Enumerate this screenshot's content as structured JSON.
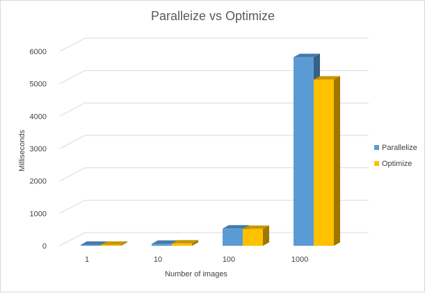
{
  "chart_data": {
    "type": "bar",
    "subtype": "3d-clustered-column",
    "title": "Paralleize vs Optimize",
    "xlabel": "Number of images",
    "ylabel": "Milliseconds",
    "categories": [
      "1",
      "10",
      "100",
      "1000"
    ],
    "series": [
      {
        "name": "Parallelize",
        "values": [
          30,
          60,
          530,
          5820
        ],
        "color": "#5b9bd5"
      },
      {
        "name": "Optimize",
        "values": [
          30,
          70,
          520,
          5130
        ],
        "color": "#ffc000"
      }
    ],
    "ylim": [
      0,
      6000
    ],
    "yticks": [
      0,
      1000,
      2000,
      3000,
      4000,
      5000,
      6000
    ],
    "grid": true,
    "legend": "right"
  }
}
